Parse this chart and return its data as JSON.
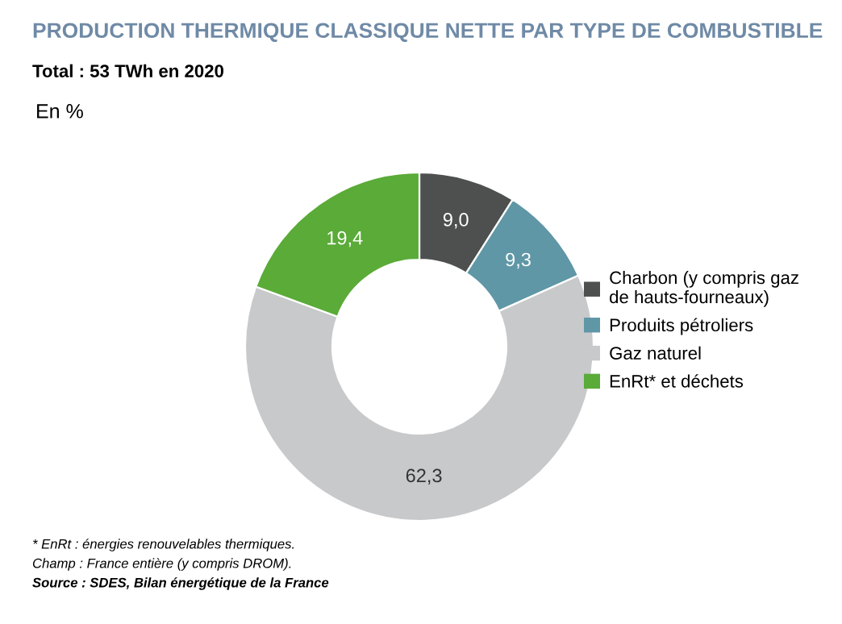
{
  "chart_data": {
    "type": "donut",
    "title": "PRODUCTION THERMIQUE CLASSIQUE NETTE PAR TYPE DE COMBUSTIBLE",
    "subtitle": "Total : 53 TWh en 2020",
    "categories": [
      "Charbon (y compris gaz de hauts-fourneaux)",
      "Produits pétroliers",
      "Gaz naturel",
      "EnRt* et déchets"
    ],
    "values": [
      9.0,
      9.3,
      62.3,
      19.4
    ],
    "value_labels": [
      "9,0",
      "9,3",
      "62,3",
      "19,4"
    ],
    "colors": [
      "#4e5050",
      "#5f97a6",
      "#c8c9cb",
      "#5aab38"
    ],
    "legend": "right",
    "annotations": [
      "En %",
      "* EnRt : énergies renouvelables thermiques.",
      "Champ : France entière (y compris DROM).",
      "Source : SDES, Bilan énergétique de la France"
    ]
  }
}
